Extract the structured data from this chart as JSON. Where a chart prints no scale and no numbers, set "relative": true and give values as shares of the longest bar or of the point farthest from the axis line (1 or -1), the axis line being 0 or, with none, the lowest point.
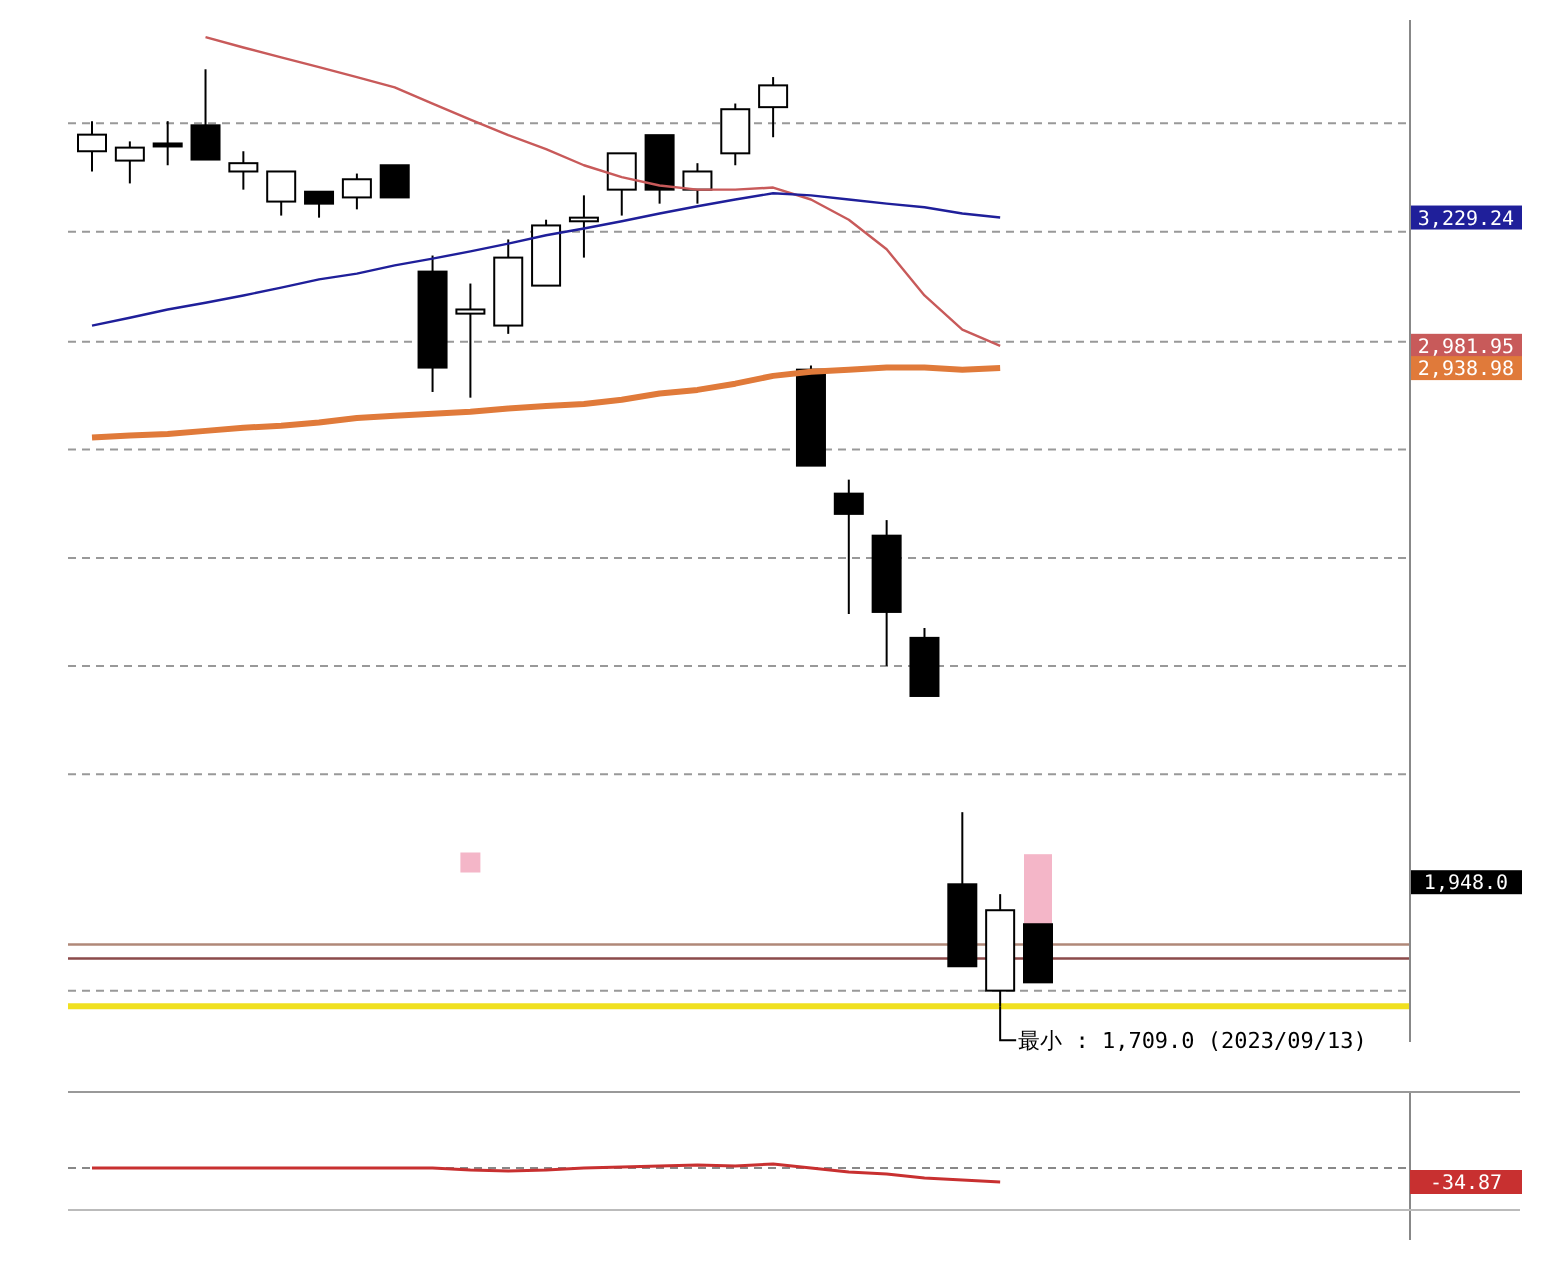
{
  "chart_data": [
    {
      "type": "candlestick",
      "categories": [
        null,
        null,
        null,
        null,
        null,
        null,
        null,
        null,
        null,
        null,
        null,
        null,
        null,
        null,
        null,
        null,
        null,
        null,
        null,
        null,
        null,
        null,
        null,
        null,
        null,
        null
      ],
      "ohlc": [
        [
          3357,
          3415,
          3318,
          3389
        ],
        [
          3339,
          3376,
          3295,
          3364
        ],
        [
          3372,
          3415,
          3330,
          3368
        ],
        [
          3407,
          3515,
          3341,
          3341
        ],
        [
          3318,
          3357,
          3283,
          3334
        ],
        [
          3260,
          3318,
          3233,
          3318
        ],
        [
          3279,
          3279,
          3229,
          3256
        ],
        [
          3268,
          3314,
          3245,
          3303
        ],
        [
          3330,
          3330,
          3268,
          3268
        ],
        [
          3125,
          3156,
          2893,
          2940
        ],
        [
          3044,
          3102,
          2882,
          3052
        ],
        [
          3021,
          3187,
          3005,
          3152
        ],
        [
          3098,
          3225,
          3098,
          3214
        ],
        [
          3222,
          3272,
          3152,
          3229
        ],
        [
          3283,
          3353,
          3233,
          3353
        ],
        [
          3388,
          3388,
          3256,
          3283
        ],
        [
          3283,
          3334,
          3256,
          3318
        ],
        [
          3353,
          3449,
          3330,
          3438
        ],
        [
          3442,
          3500,
          3384,
          3484
        ],
        [
          2936,
          2944,
          2751,
          2751
        ],
        [
          2697,
          2724,
          2465,
          2658
        ],
        [
          2616,
          2646,
          2365,
          2469
        ],
        [
          2419,
          2438,
          2307,
          2307
        ],
        [
          1944,
          2083,
          1786,
          1786
        ],
        [
          1739,
          1925,
          1709,
          1894
        ],
        [
          1867,
          1867,
          1755,
          1755
        ]
      ],
      "series": [
        {
          "type": "line",
          "color": "#c85a5a",
          "values": [
            null,
            null,
            null,
            3577,
            3557,
            3538,
            3519,
            3500,
            3480,
            3449,
            3418,
            3388,
            3361,
            3330,
            3307,
            3291,
            3283,
            3283,
            3287,
            3264,
            3225,
            3168,
            3079,
            3013,
            2981.95,
            null
          ]
        },
        {
          "type": "line",
          "color": "#1f1f9a",
          "values": [
            3021,
            3036,
            3052,
            3065,
            3079,
            3094,
            3110,
            3121,
            3137,
            3150,
            3164,
            3179,
            3195,
            3208,
            3222,
            3237,
            3251,
            3264,
            3276,
            3272,
            3264,
            3256,
            3249,
            3237,
            3229.24,
            null
          ]
        },
        {
          "type": "line",
          "color": "#e07a3a",
          "values": [
            2805,
            2809,
            2812,
            2818,
            2824,
            2828,
            2834,
            2843,
            2847,
            2851,
            2855,
            2861,
            2866,
            2870,
            2878,
            2890,
            2897,
            2909,
            2924,
            2932,
            2936,
            2940,
            2940,
            2936,
            2938.98,
            null
          ]
        },
        {
          "type": "bar",
          "color": "#f4b6c8",
          "base": [
            null,
            null,
            null,
            null,
            null,
            null,
            null,
            null,
            null,
            null,
            null,
            null,
            null,
            null,
            null,
            null,
            null,
            null,
            null,
            null,
            null,
            null,
            null,
            null,
            null,
            1863
          ],
          "values": [
            null,
            null,
            null,
            null,
            null,
            null,
            null,
            null,
            null,
            null,
            null,
            null,
            null,
            null,
            null,
            null,
            null,
            null,
            null,
            null,
            null,
            null,
            null,
            null,
            null,
            139
          ]
        },
        {
          "type": "scatter",
          "color": "#f4b6c8",
          "marker": "square",
          "values": [
            null,
            null,
            null,
            null,
            null,
            null,
            null,
            null,
            null,
            null,
            1986,
            null,
            null,
            null,
            null,
            null,
            null,
            null,
            null,
            null,
            null,
            null,
            null,
            null,
            null,
            null
          ]
        }
      ],
      "ylim": [
        1640,
        3610
      ],
      "yticks": [
        {
          "value": 3229.24,
          "label": "3,229.24"
        },
        {
          "value": 2981.95,
          "label": "2,981.95"
        },
        {
          "value": 2938.98,
          "label": "2,938.98"
        },
        {
          "value": 1948,
          "label": "1,948.0"
        },
        {
          "value": 3411,
          "label": null
        },
        {
          "value": 3202,
          "label": null
        },
        {
          "value": 2990,
          "label": null
        },
        {
          "value": 2782,
          "label": null
        },
        {
          "value": 2573,
          "label": null
        },
        {
          "value": 2365,
          "label": null
        },
        {
          "value": 2156,
          "label": null
        },
        {
          "value": 1739,
          "label": null
        }
      ],
      "grid": "y",
      "ref_lines": [
        {
          "axis": "y",
          "value": 1828,
          "color": "#b08878"
        },
        {
          "axis": "y",
          "value": 1801,
          "color": "#8b4a4a"
        },
        {
          "axis": "y",
          "value": 1709,
          "color": "#f0e020"
        }
      ],
      "annotations": [
        {
          "text": "最小 : 1,709.0 (2023/09/13)",
          "y": 1709
        }
      ]
    },
    {
      "type": "line",
      "relative": true,
      "categories": [
        null,
        null,
        null,
        null,
        null,
        null,
        null,
        null,
        null,
        null,
        null,
        null,
        null,
        null,
        null,
        null,
        null,
        null,
        null,
        null,
        null,
        null,
        null,
        null,
        null,
        null
      ],
      "series": [
        {
          "color": "#c83030",
          "values": [
            0,
            0,
            0,
            0,
            0,
            0,
            0,
            0,
            0,
            0,
            -0.14,
            -0.21,
            -0.14,
            0,
            0.07,
            0.14,
            0.21,
            0.14,
            0.29,
            0,
            -0.29,
            -0.43,
            -0.71,
            -0.86,
            -1,
            null
          ]
        }
      ],
      "annotations": [
        "-34.87"
      ]
    }
  ]
}
